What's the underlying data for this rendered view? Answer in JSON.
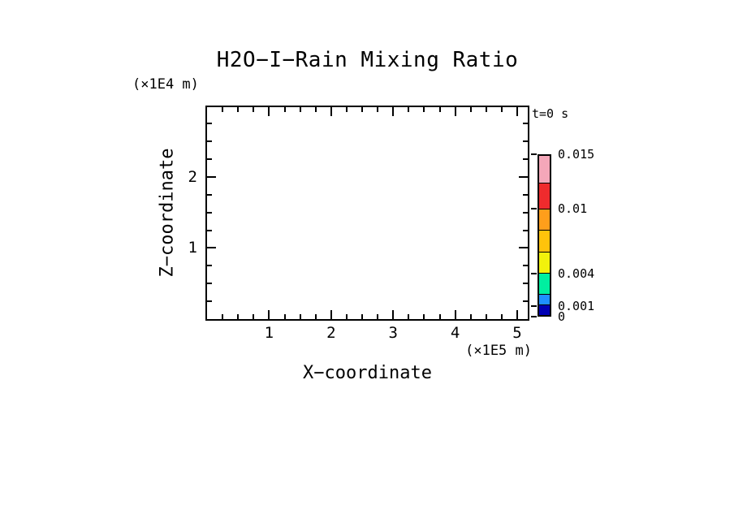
{
  "chart_data": {
    "type": "heatmap",
    "title": "H2O−I−Rain Mixing Ratio",
    "time_label": "t=0 s",
    "xlabel": "X−coordinate",
    "ylabel": "Z−coordinate",
    "x_unit": "(×1E5 m)",
    "y_unit": "(×1E4 m)",
    "xlim": [
      0,
      5.17
    ],
    "ylim": [
      0,
      2.98
    ],
    "x_major_ticks": [
      1,
      2,
      3,
      4,
      5
    ],
    "y_major_ticks": [
      1,
      2
    ],
    "minor_tick_step": 0.25,
    "grid": false,
    "series": [],
    "colorbar": {
      "levels": [
        0,
        0.001,
        0.002,
        0.004,
        0.006,
        0.008,
        0.01,
        0.0125,
        0.015
      ],
      "segment_colors": [
        "#0000B4",
        "#1E90FF",
        "#00EFA0",
        "#F2F20C",
        "#FFC30B",
        "#FF9E1B",
        "#EF2B2D",
        "#F4A7B9"
      ],
      "labeled_levels": [
        {
          "value": 0.015,
          "label": "0.015"
        },
        {
          "value": 0.01,
          "label": "0.01"
        },
        {
          "value": 0.004,
          "label": "0.004"
        },
        {
          "value": 0.001,
          "label": "0.001"
        },
        {
          "value": 0,
          "label": "0"
        }
      ]
    }
  }
}
